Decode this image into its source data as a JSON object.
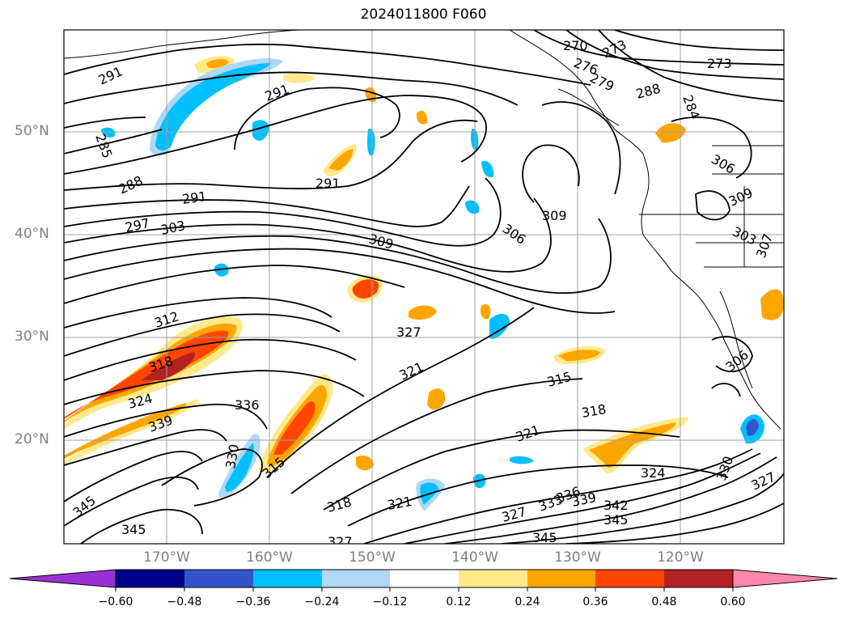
{
  "title": "2024011800 F060",
  "map": {
    "lat_labels": [
      "50°N",
      "40°N",
      "30°N",
      "20°N"
    ],
    "lon_labels": [
      "170°W",
      "160°W",
      "150°W",
      "140°W",
      "130°W",
      "120°W"
    ],
    "contour_labels": [
      "291",
      "285",
      "291",
      "291",
      "288",
      "291",
      "297",
      "303",
      "309",
      "306",
      "309",
      "270",
      "276",
      "273",
      "279",
      "273",
      "288",
      "284",
      "312",
      "327",
      "318",
      "324",
      "321",
      "315",
      "318",
      "336",
      "339",
      "330",
      "321",
      "315",
      "345",
      "318",
      "321",
      "327",
      "333",
      "336",
      "339",
      "342",
      "345",
      "345",
      "327",
      "324",
      "330",
      "327",
      "306",
      "309",
      "306",
      "303",
      "307"
    ]
  },
  "colorbar": {
    "ticks": [
      "−0.60",
      "−0.48",
      "−0.36",
      "−0.24",
      "−0.12",
      "0.12",
      "0.24",
      "0.36",
      "0.48",
      "0.60"
    ],
    "colors": [
      "#9b30d4",
      "#00008b",
      "#3355cc",
      "#00bfff",
      "#add8f7",
      "#ffffff",
      "#ffe98a",
      "#ffa500",
      "#ff4500",
      "#b22222",
      "#ff88aa"
    ]
  }
}
